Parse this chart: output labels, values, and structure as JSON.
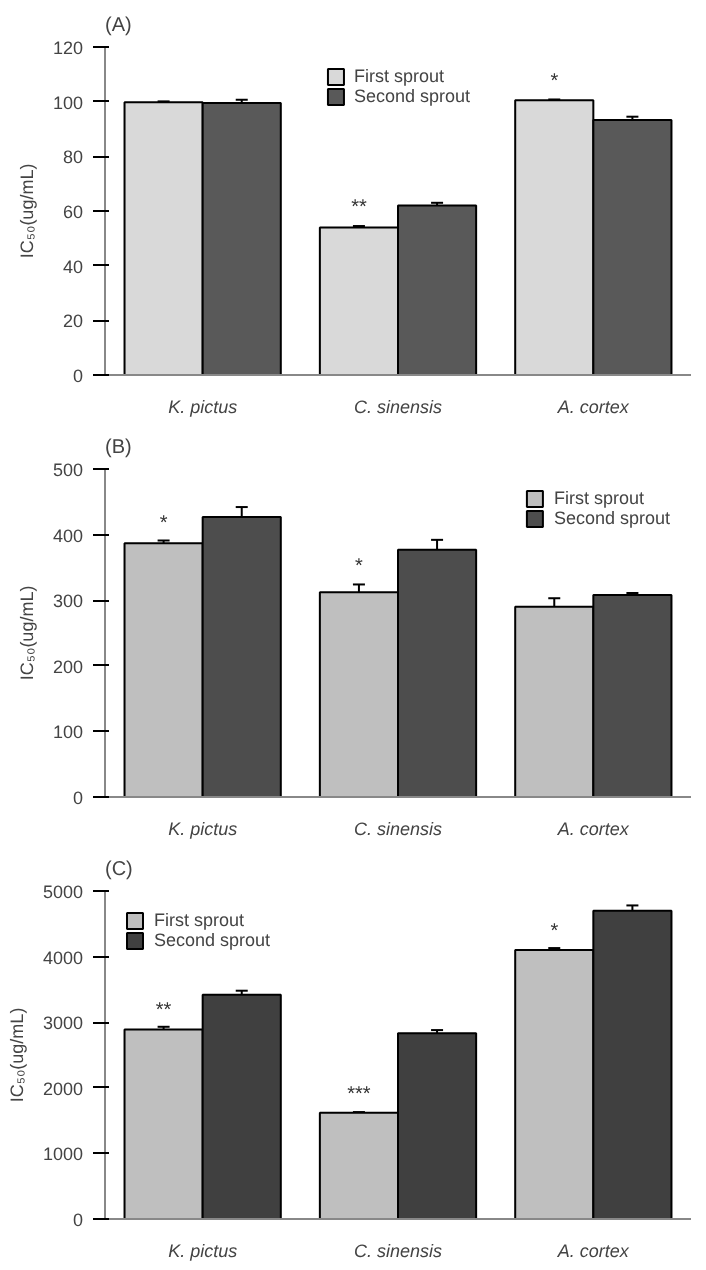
{
  "chart_data": [
    {
      "type": "bar",
      "title": "(A)",
      "ylabel": "IC₅₀(ug/mL)",
      "categories": [
        "K. pictus",
        "C. sinensis",
        "A. cortex"
      ],
      "ylim": [
        0,
        120
      ],
      "yticks": [
        0,
        20,
        40,
        60,
        80,
        100,
        120
      ],
      "grid": false,
      "legend": "top",
      "series": [
        {
          "name": "First sprout",
          "color": "#d9d9d9",
          "values": [
            99.8,
            54,
            100.5
          ],
          "errors": [
            0.3,
            0.5,
            0.3
          ]
        },
        {
          "name": "Second sprout",
          "color": "#595959",
          "values": [
            99.5,
            62,
            93.3
          ],
          "errors": [
            1.2,
            1,
            1.2
          ]
        }
      ],
      "annotations": [
        {
          "text": "**",
          "x": "C. sinensis",
          "y": 57
        },
        {
          "text": "*",
          "x": "A. cortex",
          "y": 103
        }
      ]
    },
    {
      "type": "bar",
      "title": "(B)",
      "ylabel": "IC₅₀(ug/mL)",
      "categories": [
        "K. pictus",
        "C. sinensis",
        "A. cortex"
      ],
      "ylim": [
        0,
        500
      ],
      "yticks": [
        0,
        100,
        200,
        300,
        400,
        500
      ],
      "grid": false,
      "legend": "top right",
      "series": [
        {
          "name": "First sprout",
          "color": "#bfbfbf",
          "values": [
            387,
            312,
            290
          ],
          "errors": [
            4,
            12,
            13
          ]
        },
        {
          "name": "Second sprout",
          "color": "#4d4d4d",
          "values": [
            427,
            377,
            308
          ],
          "errors": [
            15,
            15,
            3
          ]
        }
      ],
      "annotations": [
        {
          "text": "*",
          "x": "K. pictus",
          "y": 400
        },
        {
          "text": "*",
          "x": "C. sinensis",
          "y": 334
        }
      ]
    },
    {
      "type": "bar",
      "title": "(C)",
      "ylabel": "IC₅₀(ug/mL)",
      "categories": [
        "K. pictus",
        "C. sinensis",
        "A. cortex"
      ],
      "ylim": [
        0,
        5000
      ],
      "yticks": [
        0,
        1000,
        2000,
        3000,
        4000,
        5000
      ],
      "grid": false,
      "legend": "top left",
      "series": [
        {
          "name": "First sprout",
          "color": "#bfbfbf",
          "values": [
            2890,
            1620,
            4100
          ],
          "errors": [
            40,
            10,
            30
          ]
        },
        {
          "name": "Second sprout",
          "color": "#404040",
          "values": [
            3420,
            2830,
            4700
          ],
          "errors": [
            60,
            50,
            80
          ]
        }
      ],
      "annotations": [
        {
          "text": "**",
          "x": "K. pictus",
          "y": 3000
        },
        {
          "text": "***",
          "x": "C. sinensis",
          "y": 1720
        },
        {
          "text": "*",
          "x": "A. cortex",
          "y": 4200
        }
      ]
    }
  ]
}
